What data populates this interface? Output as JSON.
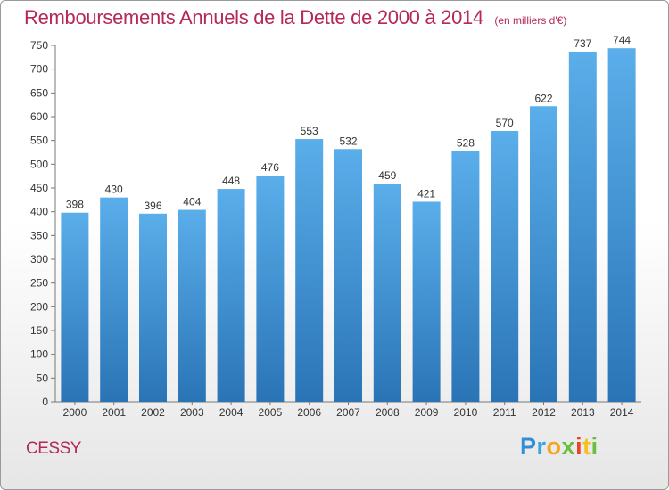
{
  "chart_data": {
    "type": "bar",
    "title": "Remboursements Annuels de la Dette de 2000 à 2014",
    "unit_note": "(en milliers d'€)",
    "categories": [
      "2000",
      "2001",
      "2002",
      "2003",
      "2004",
      "2005",
      "2006",
      "2007",
      "2008",
      "2009",
      "2010",
      "2011",
      "2012",
      "2013",
      "2014"
    ],
    "values": [
      398,
      430,
      396,
      404,
      448,
      476,
      553,
      532,
      459,
      421,
      528,
      570,
      622,
      737,
      744
    ],
    "ylim": [
      0,
      750
    ],
    "yticks": [
      0,
      50,
      100,
      150,
      200,
      250,
      300,
      350,
      400,
      450,
      500,
      550,
      600,
      650,
      700,
      750
    ],
    "xlabel": "",
    "ylabel": "",
    "grid": false,
    "bar_color_top": "#5aaeea",
    "bar_color_bottom": "#2a74b6"
  },
  "location": "CESSY",
  "brand": {
    "letters": [
      "P",
      "r",
      "o",
      "x",
      "i",
      "t",
      "i"
    ],
    "colors": [
      "#2f8fd6",
      "#3aa3dd",
      "#f2a623",
      "#6abf3c",
      "#e6452f",
      "#f4c11e",
      "#6abf3c"
    ]
  }
}
